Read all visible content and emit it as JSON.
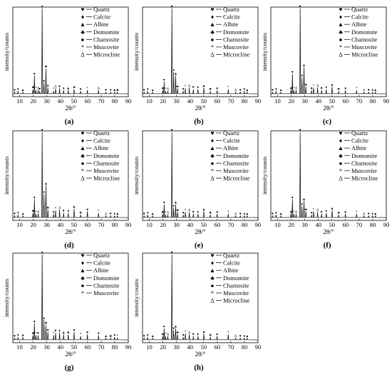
{
  "figure": {
    "ylabel": "intensity/counts",
    "xlabel": "2θ/°",
    "x_ticks": [
      10,
      20,
      30,
      40,
      50,
      60,
      70,
      80,
      90
    ]
  },
  "legend_items": [
    {
      "key": "quartz",
      "symbol": "♥",
      "name": "Quartz"
    },
    {
      "key": "calcite",
      "symbol": "♦",
      "name": "Calcite"
    },
    {
      "key": "albite",
      "symbol": "▲",
      "name": "Albite"
    },
    {
      "key": "domomite",
      "symbol": "♣",
      "name": "Domomite"
    },
    {
      "key": "chamosite",
      "symbol": "●",
      "name": "Chamosite"
    },
    {
      "key": "muscovite",
      "symbol": "*",
      "name": "Muscovite"
    },
    {
      "key": "microcline",
      "symbol": "Δ",
      "name": "Microcline"
    }
  ],
  "chart_data": [
    {
      "type": "line",
      "panel_label": "(a)",
      "xlabel": "2θ/°",
      "ylabel": "intensity/counts",
      "xlim": [
        5,
        90
      ],
      "legend": [
        "Quartz",
        "Calcite",
        "Albite",
        "Domomite",
        "Chamosite",
        "Muscovite",
        "Microcline"
      ],
      "peaks": [
        {
          "x": 6.3,
          "y": 3
        },
        {
          "x": 8.8,
          "y": 4
        },
        {
          "x": 12.4,
          "y": 3
        },
        {
          "x": 19.8,
          "y": 6
        },
        {
          "x": 20.9,
          "y": 22
        },
        {
          "x": 22.0,
          "y": 5
        },
        {
          "x": 23.6,
          "y": 5
        },
        {
          "x": 24.8,
          "y": 4
        },
        {
          "x": 26.6,
          "y": 100
        },
        {
          "x": 27.9,
          "y": 14
        },
        {
          "x": 29.4,
          "y": 30
        },
        {
          "x": 30.8,
          "y": 8
        },
        {
          "x": 35.0,
          "y": 4
        },
        {
          "x": 36.5,
          "y": 7
        },
        {
          "x": 39.4,
          "y": 7
        },
        {
          "x": 42.4,
          "y": 5
        },
        {
          "x": 45.8,
          "y": 5
        },
        {
          "x": 50.1,
          "y": 6
        },
        {
          "x": 54.9,
          "y": 4
        },
        {
          "x": 59.9,
          "y": 5
        },
        {
          "x": 68.1,
          "y": 5
        },
        {
          "x": 73.5,
          "y": 3
        },
        {
          "x": 77.0,
          "y": 3
        },
        {
          "x": 79.9,
          "y": 3
        },
        {
          "x": 82.0,
          "y": 3
        }
      ]
    },
    {
      "type": "line",
      "panel_label": "(b)",
      "xlabel": "2θ/°",
      "ylabel": "intensity/counts",
      "xlim": [
        5,
        90
      ],
      "legend": [
        "Quartz",
        "Calcite",
        "Albite",
        "Domomite",
        "Chamosite",
        "Muscovite",
        "Microcline"
      ],
      "peaks": [
        {
          "x": 6.2,
          "y": 3
        },
        {
          "x": 8.8,
          "y": 4
        },
        {
          "x": 12.4,
          "y": 3
        },
        {
          "x": 19.8,
          "y": 5
        },
        {
          "x": 20.9,
          "y": 15
        },
        {
          "x": 22.0,
          "y": 4
        },
        {
          "x": 23.6,
          "y": 4
        },
        {
          "x": 26.6,
          "y": 100
        },
        {
          "x": 27.9,
          "y": 26
        },
        {
          "x": 29.4,
          "y": 22
        },
        {
          "x": 30.8,
          "y": 7
        },
        {
          "x": 35.0,
          "y": 4
        },
        {
          "x": 36.5,
          "y": 7
        },
        {
          "x": 39.4,
          "y": 8
        },
        {
          "x": 42.4,
          "y": 6
        },
        {
          "x": 45.8,
          "y": 6
        },
        {
          "x": 50.1,
          "y": 8
        },
        {
          "x": 54.9,
          "y": 4
        },
        {
          "x": 59.9,
          "y": 5
        },
        {
          "x": 68.1,
          "y": 6
        },
        {
          "x": 73.5,
          "y": 3
        },
        {
          "x": 77.0,
          "y": 3
        },
        {
          "x": 79.9,
          "y": 4
        },
        {
          "x": 82.0,
          "y": 3
        }
      ]
    },
    {
      "type": "line",
      "panel_label": "(c)",
      "xlabel": "2θ/°",
      "ylabel": "intensity/counts",
      "xlim": [
        5,
        90
      ],
      "legend": [
        "Quartz",
        "Calcite",
        "Albite",
        "Domomite",
        "Chamosite",
        "Muscovite",
        "Microcline"
      ],
      "peaks": [
        {
          "x": 6.3,
          "y": 3
        },
        {
          "x": 8.8,
          "y": 4
        },
        {
          "x": 12.4,
          "y": 3
        },
        {
          "x": 19.8,
          "y": 5
        },
        {
          "x": 20.9,
          "y": 24
        },
        {
          "x": 22.0,
          "y": 5
        },
        {
          "x": 23.6,
          "y": 5
        },
        {
          "x": 26.6,
          "y": 100
        },
        {
          "x": 27.9,
          "y": 20
        },
        {
          "x": 29.4,
          "y": 32
        },
        {
          "x": 30.8,
          "y": 9
        },
        {
          "x": 35.0,
          "y": 5
        },
        {
          "x": 36.5,
          "y": 8
        },
        {
          "x": 39.4,
          "y": 8
        },
        {
          "x": 42.4,
          "y": 5
        },
        {
          "x": 45.8,
          "y": 6
        },
        {
          "x": 50.1,
          "y": 9
        },
        {
          "x": 54.9,
          "y": 4
        },
        {
          "x": 59.9,
          "y": 5
        },
        {
          "x": 68.1,
          "y": 5
        },
        {
          "x": 73.5,
          "y": 3
        },
        {
          "x": 77.0,
          "y": 3
        },
        {
          "x": 79.9,
          "y": 3
        },
        {
          "x": 82.0,
          "y": 3
        }
      ]
    },
    {
      "type": "line",
      "panel_label": "(d)",
      "xlabel": "2θ/°",
      "ylabel": "intensity/counts",
      "xlim": [
        5,
        90
      ],
      "legend": [
        "Quartz",
        "Calcite",
        "Albite",
        "Domomite",
        "Chamosite",
        "Muscovite",
        "Microcline"
      ],
      "peaks": [
        {
          "x": 6.3,
          "y": 3
        },
        {
          "x": 8.8,
          "y": 4
        },
        {
          "x": 12.4,
          "y": 3
        },
        {
          "x": 19.8,
          "y": 6
        },
        {
          "x": 20.9,
          "y": 22
        },
        {
          "x": 22.0,
          "y": 5
        },
        {
          "x": 23.6,
          "y": 5
        },
        {
          "x": 26.6,
          "y": 100
        },
        {
          "x": 27.9,
          "y": 28
        },
        {
          "x": 29.4,
          "y": 38
        },
        {
          "x": 30.8,
          "y": 10
        },
        {
          "x": 35.0,
          "y": 5
        },
        {
          "x": 36.5,
          "y": 9
        },
        {
          "x": 39.4,
          "y": 10
        },
        {
          "x": 42.4,
          "y": 6
        },
        {
          "x": 45.8,
          "y": 6
        },
        {
          "x": 50.1,
          "y": 11
        },
        {
          "x": 54.9,
          "y": 4
        },
        {
          "x": 59.9,
          "y": 8
        },
        {
          "x": 68.1,
          "y": 6
        },
        {
          "x": 73.5,
          "y": 3
        },
        {
          "x": 77.0,
          "y": 3
        },
        {
          "x": 79.9,
          "y": 3
        },
        {
          "x": 82.0,
          "y": 3
        }
      ]
    },
    {
      "type": "line",
      "panel_label": "(e)",
      "xlabel": "2θ/°",
      "ylabel": "intensity/counts",
      "xlim": [
        5,
        90
      ],
      "legend": [
        "Quartz",
        "Calcite",
        "Albite",
        "Domomite",
        "Chamosite",
        "Muscovite",
        "Microcline"
      ],
      "peaks": [
        {
          "x": 6.2,
          "y": 3
        },
        {
          "x": 8.8,
          "y": 4
        },
        {
          "x": 12.4,
          "y": 3
        },
        {
          "x": 19.8,
          "y": 5
        },
        {
          "x": 20.9,
          "y": 16
        },
        {
          "x": 22.0,
          "y": 4
        },
        {
          "x": 23.6,
          "y": 4
        },
        {
          "x": 26.6,
          "y": 100
        },
        {
          "x": 27.9,
          "y": 12
        },
        {
          "x": 29.4,
          "y": 16
        },
        {
          "x": 30.8,
          "y": 7
        },
        {
          "x": 35.0,
          "y": 4
        },
        {
          "x": 36.5,
          "y": 7
        },
        {
          "x": 39.4,
          "y": 7
        },
        {
          "x": 42.4,
          "y": 5
        },
        {
          "x": 45.8,
          "y": 5
        },
        {
          "x": 50.1,
          "y": 8
        },
        {
          "x": 54.9,
          "y": 4
        },
        {
          "x": 59.9,
          "y": 5
        },
        {
          "x": 68.1,
          "y": 5
        },
        {
          "x": 73.5,
          "y": 3
        },
        {
          "x": 77.0,
          "y": 3
        },
        {
          "x": 79.9,
          "y": 3
        },
        {
          "x": 82.0,
          "y": 3
        }
      ]
    },
    {
      "type": "line",
      "panel_label": "(f)",
      "xlabel": "2θ/°",
      "ylabel": "intensity/counts",
      "xlim": [
        5,
        90
      ],
      "legend": [
        "Quartz",
        "Calcite",
        "Albite",
        "Domomite",
        "Chamosite",
        "Muscovite",
        "Microcline"
      ],
      "peaks": [
        {
          "x": 6.3,
          "y": 3
        },
        {
          "x": 8.8,
          "y": 4
        },
        {
          "x": 12.4,
          "y": 3
        },
        {
          "x": 19.8,
          "y": 5
        },
        {
          "x": 20.9,
          "y": 22
        },
        {
          "x": 22.0,
          "y": 5
        },
        {
          "x": 23.6,
          "y": 5
        },
        {
          "x": 26.6,
          "y": 100
        },
        {
          "x": 27.9,
          "y": 14
        },
        {
          "x": 29.4,
          "y": 20
        },
        {
          "x": 30.8,
          "y": 8
        },
        {
          "x": 35.0,
          "y": 4
        },
        {
          "x": 36.5,
          "y": 8
        },
        {
          "x": 39.4,
          "y": 7
        },
        {
          "x": 42.4,
          "y": 5
        },
        {
          "x": 45.8,
          "y": 6
        },
        {
          "x": 50.1,
          "y": 9
        },
        {
          "x": 54.9,
          "y": 4
        },
        {
          "x": 59.9,
          "y": 5
        },
        {
          "x": 68.1,
          "y": 5
        },
        {
          "x": 73.5,
          "y": 3
        },
        {
          "x": 77.0,
          "y": 3
        },
        {
          "x": 79.9,
          "y": 3
        },
        {
          "x": 82.0,
          "y": 3
        }
      ]
    },
    {
      "type": "line",
      "panel_label": "(g)",
      "xlabel": "2θ/°",
      "ylabel": "intensity/counts",
      "xlim": [
        5,
        90
      ],
      "legend": [
        "Quartz",
        "Calcite",
        "Albite",
        "Domomite",
        "Chamosite",
        "Muscovite"
      ],
      "peaks": [
        {
          "x": 6.3,
          "y": 3
        },
        {
          "x": 8.8,
          "y": 4
        },
        {
          "x": 12.4,
          "y": 4
        },
        {
          "x": 19.8,
          "y": 6
        },
        {
          "x": 20.9,
          "y": 20
        },
        {
          "x": 22.0,
          "y": 6
        },
        {
          "x": 23.6,
          "y": 6
        },
        {
          "x": 26.6,
          "y": 100
        },
        {
          "x": 27.9,
          "y": 24
        },
        {
          "x": 29.4,
          "y": 18
        },
        {
          "x": 30.8,
          "y": 10
        },
        {
          "x": 35.0,
          "y": 6
        },
        {
          "x": 36.5,
          "y": 9
        },
        {
          "x": 39.4,
          "y": 9
        },
        {
          "x": 42.4,
          "y": 7
        },
        {
          "x": 45.8,
          "y": 7
        },
        {
          "x": 50.1,
          "y": 10
        },
        {
          "x": 54.9,
          "y": 5
        },
        {
          "x": 59.9,
          "y": 7
        },
        {
          "x": 68.1,
          "y": 6
        },
        {
          "x": 73.5,
          "y": 3
        },
        {
          "x": 77.0,
          "y": 3
        },
        {
          "x": 79.9,
          "y": 4
        },
        {
          "x": 82.0,
          "y": 3
        }
      ]
    },
    {
      "type": "line",
      "panel_label": "(h)",
      "xlabel": "2θ/°",
      "ylabel": "intensity/counts",
      "xlim": [
        5,
        90
      ],
      "legend": [
        "Quartz",
        "Calcite",
        "Albite",
        "Domomite",
        "Chamosite",
        "Muscovite",
        "Microcline"
      ],
      "peaks": [
        {
          "x": 6.2,
          "y": 3
        },
        {
          "x": 8.8,
          "y": 4
        },
        {
          "x": 12.4,
          "y": 3
        },
        {
          "x": 19.8,
          "y": 5
        },
        {
          "x": 20.9,
          "y": 14
        },
        {
          "x": 22.0,
          "y": 5
        },
        {
          "x": 23.6,
          "y": 5
        },
        {
          "x": 26.6,
          "y": 100
        },
        {
          "x": 27.9,
          "y": 12
        },
        {
          "x": 29.4,
          "y": 14
        },
        {
          "x": 30.8,
          "y": 7
        },
        {
          "x": 35.0,
          "y": 4
        },
        {
          "x": 36.5,
          "y": 8
        },
        {
          "x": 39.4,
          "y": 7
        },
        {
          "x": 42.4,
          "y": 5
        },
        {
          "x": 45.8,
          "y": 5
        },
        {
          "x": 50.1,
          "y": 8
        },
        {
          "x": 54.9,
          "y": 4
        },
        {
          "x": 59.9,
          "y": 5
        },
        {
          "x": 68.1,
          "y": 7
        },
        {
          "x": 73.5,
          "y": 3
        },
        {
          "x": 77.0,
          "y": 3
        },
        {
          "x": 79.9,
          "y": 3
        },
        {
          "x": 82.0,
          "y": 3
        }
      ]
    }
  ]
}
